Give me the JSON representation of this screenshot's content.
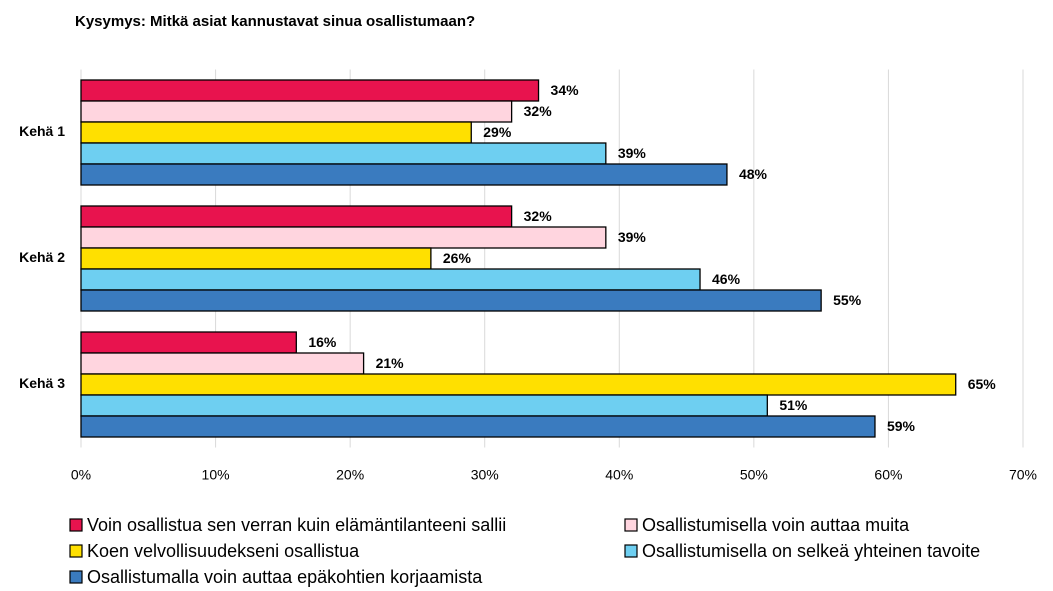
{
  "chart_data": {
    "type": "hbar",
    "title": "Kysymys: Mitkä asiat kannustavat sinua osallistumaan?",
    "categories": [
      "Kehä 1",
      "Kehä 2",
      "Kehä 3"
    ],
    "series": [
      {
        "name": "Voin osallistua sen verran kuin elämäntilanteeni sallii",
        "color": "#e8134e",
        "values": [
          34,
          32,
          16
        ],
        "value_labels": [
          "34%",
          "32%",
          "16%"
        ]
      },
      {
        "name": "Osallistumisella voin auttaa muita",
        "color": "#ffd5df",
        "values": [
          32,
          39,
          21
        ],
        "value_labels": [
          "32%",
          "39%",
          "21%"
        ]
      },
      {
        "name": "Koen velvollisuudekseni osallistua",
        "color": "#ffe000",
        "values": [
          29,
          26,
          65
        ],
        "value_labels": [
          "29%",
          "26%",
          "65%"
        ]
      },
      {
        "name": "Osallistumisella on selkeä yhteinen tavoite",
        "color": "#6ecff1",
        "values": [
          39,
          46,
          51
        ],
        "value_labels": [
          "39%",
          "46%",
          "51%"
        ]
      },
      {
        "name": "Osallistumalla voin auttaa epäkohtien korjaamista",
        "color": "#3a7bbf",
        "values": [
          48,
          55,
          59
        ],
        "value_labels": [
          "48%",
          "55%",
          "59%"
        ]
      }
    ],
    "xlim": [
      0,
      70
    ],
    "xticks": [
      {
        "value": 0,
        "label": "0%"
      },
      {
        "value": 10,
        "label": "10%"
      },
      {
        "value": 20,
        "label": "20%"
      },
      {
        "value": 30,
        "label": "30%"
      },
      {
        "value": 40,
        "label": "40%"
      },
      {
        "value": 50,
        "label": "50%"
      },
      {
        "value": 60,
        "label": "60%"
      },
      {
        "value": 70,
        "label": "70%"
      }
    ],
    "grid": true,
    "legend": "bottom"
  }
}
